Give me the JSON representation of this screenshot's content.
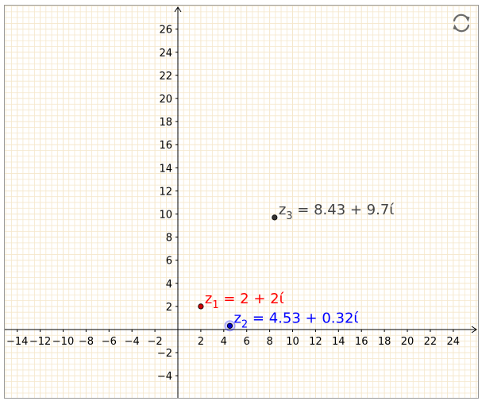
{
  "app": {
    "reset_button_label": "Reset construction"
  },
  "axes": {
    "x_ticks": [
      -14,
      -12,
      -10,
      -8,
      -6,
      -4,
      -2,
      2,
      4,
      6,
      8,
      10,
      12,
      14,
      16,
      18,
      20,
      22,
      24
    ],
    "y_ticks": [
      -4,
      -2,
      2,
      4,
      6,
      8,
      10,
      12,
      14,
      16,
      18,
      20,
      22,
      24,
      26
    ],
    "x_range": [
      -15.2,
      26.1
    ],
    "y_range": [
      -5.9,
      28.0
    ],
    "grid": true,
    "grid_color": "#f5e7cb"
  },
  "points": [
    {
      "id": "z1",
      "name": "z",
      "subscript": "1",
      "value": "= 2 + 2ί",
      "re": 2,
      "im": 2,
      "color": "#ff0000",
      "dot_color": "#cc0000",
      "selected": false
    },
    {
      "id": "z2",
      "name": "z",
      "subscript": "2",
      "value": "= 4.53 + 0.32ί",
      "re": 4.53,
      "im": 0.32,
      "color": "#0000ff",
      "dot_color": "#0000cc",
      "selected": true
    },
    {
      "id": "z3",
      "name": "z",
      "subscript": "3",
      "value": "= 8.43 + 9.7ί",
      "re": 8.43,
      "im": 9.7,
      "color": "#444444",
      "dot_color": "#333333",
      "selected": false
    }
  ]
}
